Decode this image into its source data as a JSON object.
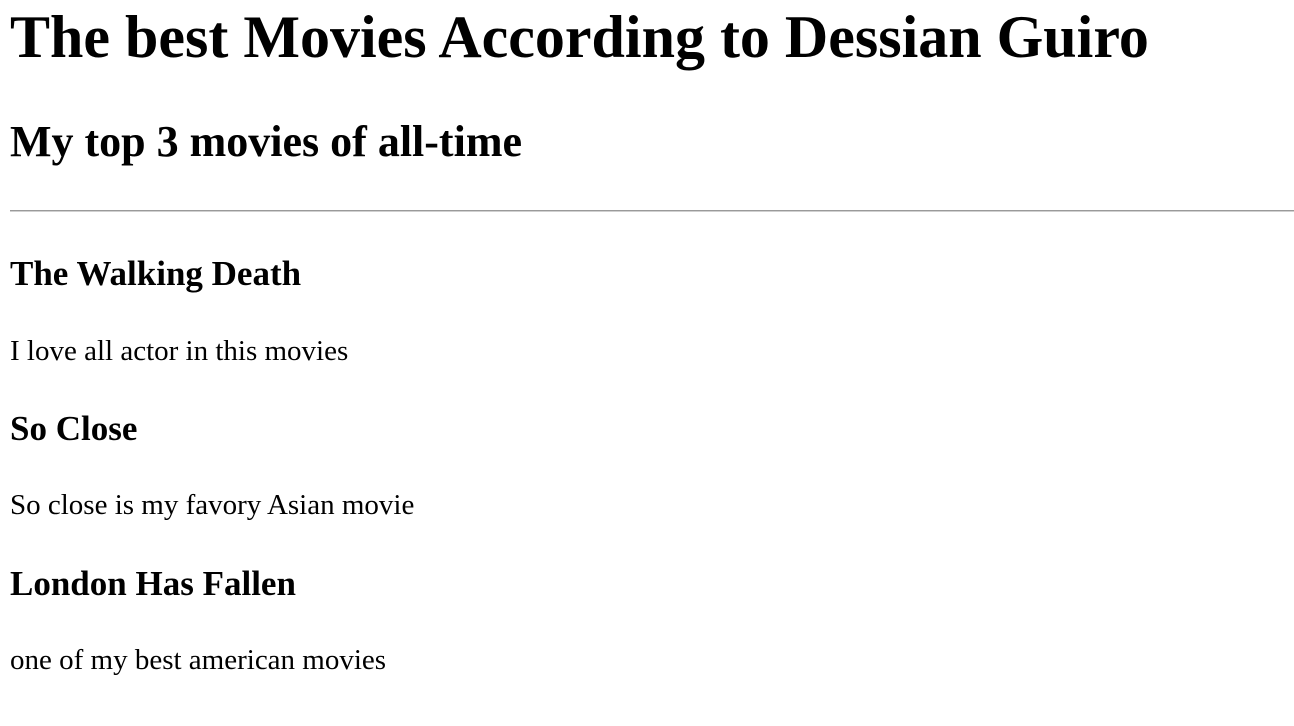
{
  "page": {
    "title": "The best Movies According to Dessian Guiro",
    "subtitle": "My top 3 movies of all-time"
  },
  "movies": [
    {
      "title": "The Walking Death",
      "description": "I love all actor in this movies"
    },
    {
      "title": "So Close",
      "description": "So close is my favory Asian movie"
    },
    {
      "title": "London Has Fallen",
      "description": "one of my best american movies"
    }
  ]
}
